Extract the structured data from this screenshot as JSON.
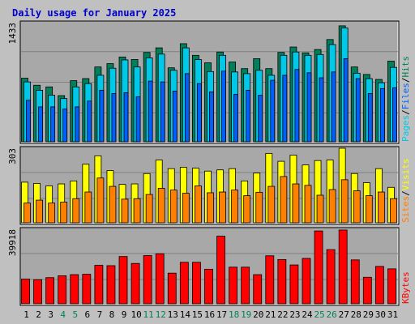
{
  "title": "Daily usage for January 2025",
  "colors": {
    "background": "#c0c0c0",
    "plot_bg": "#a8a8a8",
    "title": "#0000cc",
    "hits": "#00805a",
    "files": "#0060ff",
    "pages": "#00c8e8",
    "visits": "#ffff00",
    "sites": "#ff8000",
    "kbytes": "#ff0000",
    "weekend_label": "#00805a",
    "weekday_label": "#000000",
    "grid": "#808080"
  },
  "chart_data": [
    {
      "type": "bar",
      "panel": "top",
      "max_label": "1433",
      "ylim": [
        0,
        1433
      ],
      "grid": true,
      "legend_text": [
        "Pages",
        "Files",
        "Hits"
      ],
      "legend_placement": "right-vertical",
      "categories": [
        "1",
        "2",
        "3",
        "4",
        "5",
        "6",
        "7",
        "8",
        "9",
        "10",
        "11",
        "12",
        "13",
        "14",
        "15",
        "16",
        "17",
        "18",
        "19",
        "20",
        "21",
        "22",
        "23",
        "24",
        "25",
        "26",
        "27",
        "28",
        "29",
        "30",
        "31"
      ],
      "series": [
        {
          "name": "Hits",
          "values": [
            765,
            680,
            660,
            555,
            735,
            760,
            900,
            940,
            1020,
            990,
            1075,
            1130,
            890,
            1180,
            1040,
            950,
            1080,
            960,
            880,
            1000,
            880,
            1075,
            1140,
            1070,
            1110,
            1230,
            1395,
            900,
            810,
            750,
            970
          ]
        },
        {
          "name": "Files",
          "values": [
            500,
            420,
            420,
            395,
            420,
            490,
            620,
            580,
            590,
            540,
            730,
            720,
            610,
            820,
            700,
            600,
            850,
            570,
            620,
            560,
            740,
            800,
            870,
            830,
            770,
            840,
            1000,
            760,
            580,
            640,
            650
          ]
        },
        {
          "name": "Pages",
          "values": [
            720,
            620,
            560,
            520,
            660,
            700,
            800,
            885,
            985,
            900,
            1010,
            1055,
            860,
            1130,
            990,
            845,
            1040,
            840,
            820,
            860,
            800,
            1040,
            1080,
            1040,
            1050,
            1170,
            1370,
            825,
            760,
            710,
            895
          ]
        }
      ]
    },
    {
      "type": "bar",
      "panel": "middle",
      "max_label": "303",
      "ylim": [
        0,
        303
      ],
      "grid": true,
      "legend_text": [
        "Sites",
        "Visits"
      ],
      "legend_placement": "right-vertical",
      "categories": [
        "1",
        "2",
        "3",
        "4",
        "5",
        "6",
        "7",
        "8",
        "9",
        "10",
        "11",
        "12",
        "13",
        "14",
        "15",
        "16",
        "17",
        "18",
        "19",
        "20",
        "21",
        "22",
        "23",
        "24",
        "25",
        "26",
        "27",
        "28",
        "29",
        "30",
        "31"
      ],
      "series": [
        {
          "name": "Visits",
          "values": [
            165,
            160,
            150,
            158,
            170,
            238,
            272,
            212,
            156,
            158,
            200,
            255,
            220,
            225,
            222,
            210,
            215,
            220,
            170,
            202,
            282,
            250,
            275,
            235,
            253,
            255,
            303,
            200,
            163,
            220,
            144
          ]
        },
        {
          "name": "Sites",
          "values": [
            80,
            92,
            80,
            84,
            98,
            125,
            182,
            148,
            96,
            98,
            115,
            140,
            133,
            120,
            150,
            122,
            125,
            133,
            110,
            124,
            148,
            188,
            158,
            152,
            112,
            135,
            175,
            130,
            110,
            125,
            98
          ]
        }
      ]
    },
    {
      "type": "bar",
      "panel": "bottom",
      "max_label": "39918",
      "ylim": [
        0,
        39918
      ],
      "grid": true,
      "legend_text": [
        "KBytes"
      ],
      "legend_placement": "right-vertical",
      "categories": [
        "1",
        "2",
        "3",
        "4",
        "5",
        "6",
        "7",
        "8",
        "9",
        "10",
        "11",
        "12",
        "13",
        "14",
        "15",
        "16",
        "17",
        "18",
        "19",
        "20",
        "21",
        "22",
        "23",
        "24",
        "25",
        "26",
        "27",
        "28",
        "29",
        "30",
        "31"
      ],
      "series": [
        {
          "name": "KBytes",
          "values": [
            13200,
            12900,
            14000,
            15000,
            15600,
            15800,
            20600,
            20400,
            25300,
            21600,
            25800,
            26800,
            16400,
            22200,
            22200,
            18500,
            36200,
            19600,
            19600,
            15600,
            25700,
            23700,
            20800,
            24300,
            39000,
            29000,
            39500,
            23500,
            14200,
            20000,
            18700
          ]
        }
      ]
    }
  ],
  "x_labels": [
    "1",
    "2",
    "3",
    "4",
    "5",
    "6",
    "7",
    "8",
    "9",
    "10",
    "11",
    "12",
    "13",
    "14",
    "15",
    "16",
    "17",
    "18",
    "19",
    "20",
    "21",
    "22",
    "23",
    "24",
    "25",
    "26",
    "27",
    "28",
    "29",
    "30",
    "31"
  ],
  "weekend_days": [
    "4",
    "5",
    "11",
    "12",
    "18",
    "19",
    "25",
    "26"
  ]
}
